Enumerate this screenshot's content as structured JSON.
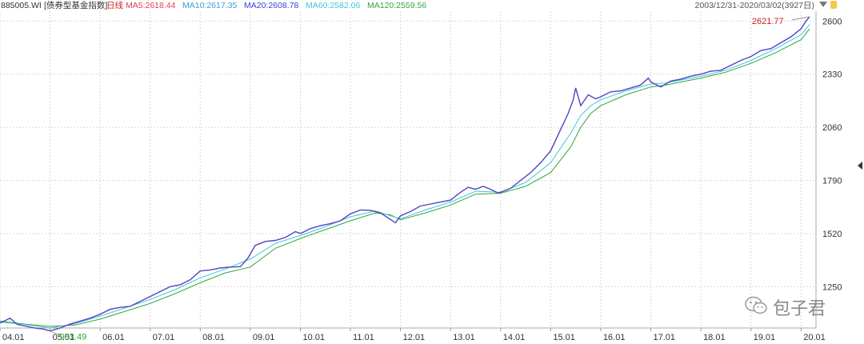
{
  "header": {
    "code": "885005.WI",
    "name": "[债券型基金指数]",
    "period": "日线",
    "ma5": "MA5:2618.44",
    "ma10": "MA10:2617.35",
    "ma20": "MA20:2608.78",
    "ma60": "MA60:2582.06",
    "ma120": "MA120:2559.56",
    "range": "2003/12/31-2020/03/02(3927日)"
  },
  "colors": {
    "price": "#cc2222",
    "ma5": "#e8384f",
    "ma10": "#3aa0d0",
    "ma20": "#3344dd",
    "ma60": "#3ec6e0",
    "ma120": "#2fa63a",
    "grid": "#d9d9d9"
  },
  "watermark": {
    "text": "包子君",
    "icon": "wechat-icon"
  },
  "chart_data": {
    "type": "line",
    "x_tick_labels": [
      "04.01",
      "05.01",
      "06.01",
      "07.01",
      "08.01",
      "09.01",
      "10.01",
      "11.01",
      "12.01",
      "13.01",
      "14.01",
      "15.01",
      "16.01",
      "17.01",
      "18.01",
      "19.01",
      "20.01"
    ],
    "y_tick_labels": [
      "1250",
      "1520",
      "1790",
      "2060",
      "2330",
      "2600"
    ],
    "ylim": [
      1040,
      2650
    ],
    "xlim": [
      2004.0,
      2020.3
    ],
    "annotations": {
      "high": "2621.77",
      "low": "983.49"
    },
    "series": [
      {
        "key": "price",
        "x": [
          2004.0,
          2004.2,
          2004.35,
          2004.5,
          2004.7,
          2004.85,
          2005.0,
          2005.2,
          2005.4,
          2005.6,
          2005.8,
          2006.0,
          2006.2,
          2006.4,
          2006.6,
          2006.8,
          2007.0,
          2007.2,
          2007.4,
          2007.6,
          2007.8,
          2008.0,
          2008.2,
          2008.4,
          2008.6,
          2008.8,
          2008.95,
          2009.1,
          2009.3,
          2009.5,
          2009.7,
          2009.9,
          2010.0,
          2010.2,
          2010.4,
          2010.6,
          2010.8,
          2011.0,
          2011.2,
          2011.4,
          2011.6,
          2011.75,
          2011.9,
          2012.0,
          2012.2,
          2012.4,
          2012.6,
          2012.8,
          2013.0,
          2013.2,
          2013.35,
          2013.5,
          2013.65,
          2013.8,
          2013.95,
          2014.0,
          2014.2,
          2014.4,
          2014.6,
          2014.8,
          2015.0,
          2015.2,
          2015.35,
          2015.45,
          2015.5,
          2015.6,
          2015.75,
          2015.9,
          2016.0,
          2016.2,
          2016.4,
          2016.6,
          2016.8,
          2016.95,
          2017.0,
          2017.2,
          2017.4,
          2017.6,
          2017.8,
          2018.0,
          2018.2,
          2018.4,
          2018.6,
          2018.8,
          2019.0,
          2019.2,
          2019.4,
          2019.6,
          2019.8,
          2020.0,
          2020.1,
          2020.17
        ],
        "y": [
          1065,
          1090,
          1058,
          1050,
          1040,
          1035,
          1025,
          1040,
          1060,
          1075,
          1090,
          1110,
          1135,
          1145,
          1150,
          1175,
          1200,
          1225,
          1250,
          1260,
          1285,
          1330,
          1335,
          1345,
          1350,
          1352,
          1395,
          1460,
          1480,
          1485,
          1500,
          1530,
          1520,
          1545,
          1560,
          1570,
          1585,
          1620,
          1640,
          1638,
          1625,
          1600,
          1575,
          1610,
          1632,
          1660,
          1670,
          1680,
          1690,
          1730,
          1755,
          1745,
          1760,
          1745,
          1725,
          1730,
          1750,
          1790,
          1830,
          1880,
          1940,
          2050,
          2130,
          2200,
          2260,
          2170,
          2225,
          2205,
          2215,
          2240,
          2245,
          2260,
          2275,
          2310,
          2290,
          2265,
          2295,
          2305,
          2320,
          2330,
          2345,
          2350,
          2375,
          2400,
          2420,
          2450,
          2460,
          2490,
          2520,
          2560,
          2600,
          2621.77
        ]
      },
      {
        "key": "ma60",
        "x": [
          2004.0,
          2004.5,
          2005.0,
          2005.5,
          2006.0,
          2006.5,
          2007.0,
          2007.5,
          2008.0,
          2008.5,
          2009.0,
          2009.5,
          2010.0,
          2010.5,
          2011.0,
          2011.5,
          2011.8,
          2012.0,
          2012.5,
          2013.0,
          2013.5,
          2014.0,
          2014.5,
          2015.0,
          2015.4,
          2015.6,
          2015.8,
          2016.0,
          2016.5,
          2017.0,
          2017.3,
          2017.6,
          2018.0,
          2018.5,
          2019.0,
          2019.5,
          2020.0,
          2020.17
        ],
        "y": [
          1070,
          1058,
          1040,
          1062,
          1100,
          1142,
          1185,
          1235,
          1295,
          1340,
          1390,
          1470,
          1510,
          1555,
          1605,
          1635,
          1610,
          1595,
          1640,
          1680,
          1735,
          1730,
          1780,
          1880,
          2030,
          2120,
          2170,
          2200,
          2245,
          2280,
          2285,
          2300,
          2320,
          2350,
          2400,
          2460,
          2530,
          2582.06
        ]
      },
      {
        "key": "ma120",
        "x": [
          2004.0,
          2004.5,
          2005.0,
          2005.5,
          2006.0,
          2006.5,
          2007.0,
          2007.5,
          2008.0,
          2008.5,
          2009.0,
          2009.5,
          2010.0,
          2010.5,
          2011.0,
          2011.5,
          2011.8,
          2012.0,
          2012.5,
          2013.0,
          2013.5,
          2014.0,
          2014.5,
          2015.0,
          2015.4,
          2015.6,
          2015.8,
          2016.0,
          2016.5,
          2017.0,
          2017.3,
          2017.6,
          2018.0,
          2018.5,
          2019.0,
          2019.5,
          2020.0,
          2020.17
        ],
        "y": [
          1075,
          1060,
          1048,
          1055,
          1085,
          1125,
          1165,
          1215,
          1270,
          1320,
          1350,
          1445,
          1495,
          1540,
          1585,
          1625,
          1615,
          1590,
          1625,
          1665,
          1720,
          1725,
          1760,
          1830,
          1960,
          2060,
          2130,
          2170,
          2225,
          2265,
          2275,
          2290,
          2310,
          2340,
          2385,
          2440,
          2505,
          2559.56
        ]
      }
    ]
  }
}
